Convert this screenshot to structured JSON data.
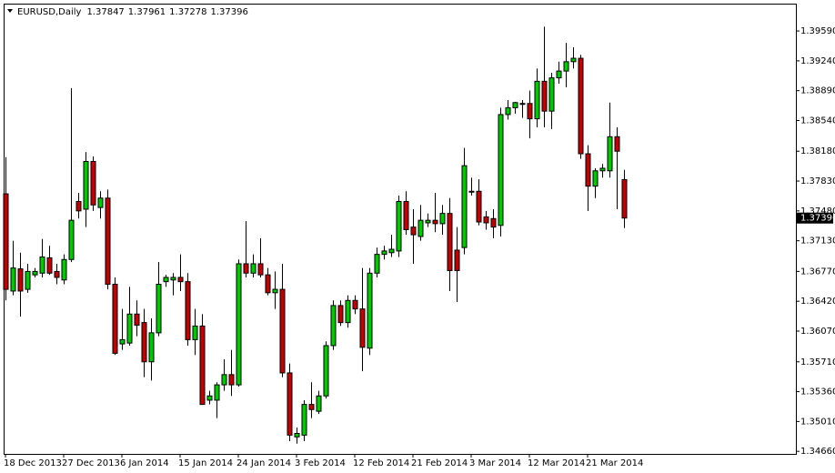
{
  "chart_data": {
    "type": "candlestick",
    "title": "EURUSD,Daily",
    "categories": [
      "18 Dec 2013",
      null,
      null,
      null,
      null,
      null,
      null,
      null,
      "27 Dec 2013",
      null,
      null,
      null,
      null,
      null,
      null,
      null,
      "6 Jan 2014",
      null,
      null,
      null,
      null,
      null,
      null,
      null,
      "15 Jan 2014",
      null,
      null,
      null,
      null,
      null,
      null,
      null,
      "24 Jan 2014",
      null,
      null,
      null,
      null,
      null,
      null,
      null,
      "3 Feb 2014",
      null,
      null,
      null,
      null,
      null,
      null,
      null,
      "12 Feb 2014",
      null,
      null,
      null,
      null,
      null,
      null,
      null,
      "21 Feb 2014",
      null,
      null,
      null,
      null,
      null,
      null,
      null,
      "3 Mar 2014",
      null,
      null,
      null,
      null,
      null,
      null,
      null,
      "12 Mar 2014",
      null,
      null,
      null,
      null,
      null,
      null,
      null,
      "21 Mar 2014",
      null,
      null,
      null,
      null,
      null
    ],
    "open": [
      1.3768,
      1.3654,
      1.368,
      1.3656,
      1.3673,
      1.3675,
      1.3693,
      1.3677,
      1.3667,
      1.3691,
      1.3759,
      1.375,
      1.3806,
      1.3752,
      1.3763,
      1.3662,
      1.3592,
      1.3593,
      1.3627,
      1.3617,
      1.3571,
      1.3605,
      1.3665,
      1.3667,
      1.367,
      1.3665,
      1.3597,
      1.3613,
      1.3526,
      1.3526,
      1.3544,
      1.3556,
      1.3544,
      1.3686,
      1.3675,
      1.3686,
      1.3673,
      1.3652,
      1.3656,
      1.3558,
      1.3483,
      1.3485,
      1.3521,
      1.3513,
      1.3531,
      1.359,
      1.3637,
      1.3617,
      1.3643,
      1.3633,
      1.3587,
      1.3675,
      1.3697,
      1.3699,
      1.3701,
      1.3759,
      1.3729,
      1.3718,
      1.3734,
      1.3737,
      1.3733,
      1.3745,
      1.3702,
      1.3705,
      1.377,
      1.3771,
      1.3741,
      1.3739,
      1.3731,
      1.3861,
      1.3869,
      1.3873,
      1.3874,
      1.3856,
      1.39,
      1.3865,
      1.3904,
      1.3912,
      1.3923,
      1.3927,
      1.3815,
      1.3777,
      1.3795,
      1.3795,
      1.3835,
      1.37847
    ],
    "high": [
      1.3811,
      1.3713,
      1.3699,
      1.3686,
      1.3681,
      1.3715,
      1.3707,
      1.3686,
      1.3697,
      1.3892,
      1.3769,
      1.3817,
      1.3812,
      1.3771,
      1.3773,
      1.367,
      1.3633,
      1.3659,
      1.3643,
      1.3633,
      1.3622,
      1.3688,
      1.3673,
      1.3675,
      1.3697,
      1.3675,
      1.3633,
      1.3627,
      1.3537,
      1.3547,
      1.3574,
      1.3585,
      1.3691,
      1.3736,
      1.3697,
      1.3716,
      1.3681,
      1.3677,
      1.3686,
      1.3569,
      1.3494,
      1.3526,
      1.3547,
      1.3537,
      1.3595,
      1.3643,
      1.3643,
      1.3649,
      1.3649,
      1.3681,
      1.3681,
      1.3705,
      1.3707,
      1.372,
      1.3766,
      1.3771,
      1.375,
      1.3755,
      1.3745,
      1.3769,
      1.3755,
      1.3763,
      1.3729,
      1.3822,
      1.3787,
      1.3785,
      1.3748,
      1.375,
      1.3869,
      1.3878,
      1.3876,
      1.3878,
      1.3889,
      1.3915,
      1.3964,
      1.391,
      1.3923,
      1.3945,
      1.394,
      1.3931,
      1.3825,
      1.3798,
      1.3803,
      1.3875,
      1.3846,
      1.37961
    ],
    "low": [
      1.3643,
      1.3649,
      1.3624,
      1.3652,
      1.367,
      1.367,
      1.3673,
      1.3662,
      1.3662,
      1.3688,
      1.3739,
      1.3729,
      1.3748,
      1.3739,
      1.3656,
      1.3579,
      1.3585,
      1.359,
      1.3601,
      1.3553,
      1.3549,
      1.3601,
      1.3659,
      1.3649,
      1.3654,
      1.359,
      1.3579,
      1.3521,
      1.3521,
      1.3505,
      1.3537,
      1.3531,
      1.3542,
      1.367,
      1.367,
      1.367,
      1.3649,
      1.3633,
      1.3553,
      1.3478,
      1.3475,
      1.3478,
      1.3505,
      1.351,
      1.3528,
      1.3585,
      1.3613,
      1.3611,
      1.3627,
      1.356,
      1.3579,
      1.367,
      1.3691,
      1.3694,
      1.3694,
      1.372,
      1.3686,
      1.3713,
      1.3729,
      1.3723,
      1.372,
      1.3654,
      1.3641,
      1.3697,
      1.3766,
      1.3731,
      1.3726,
      1.3716,
      1.3718,
      1.3855,
      1.3862,
      1.3857,
      1.3833,
      1.3846,
      1.3846,
      1.3844,
      1.3897,
      1.3893,
      1.3915,
      1.3809,
      1.3748,
      1.3763,
      1.3787,
      1.3787,
      1.375,
      1.37278
    ],
    "close": [
      1.3656,
      1.3681,
      1.3654,
      1.3677,
      1.3677,
      1.3694,
      1.3675,
      1.367,
      1.3691,
      1.3737,
      1.3748,
      1.3806,
      1.3755,
      1.3763,
      1.3662,
      1.3581,
      1.3597,
      1.3627,
      1.3614,
      1.3571,
      1.3605,
      1.3662,
      1.367,
      1.367,
      1.3665,
      1.3597,
      1.3613,
      1.3521,
      1.3531,
      1.3544,
      1.3556,
      1.3544,
      1.3686,
      1.3675,
      1.3686,
      1.3673,
      1.3652,
      1.3656,
      1.3558,
      1.3485,
      1.3487,
      1.3521,
      1.3515,
      1.3531,
      1.359,
      1.3637,
      1.3617,
      1.3643,
      1.3633,
      1.3588,
      1.3675,
      1.3697,
      1.3701,
      1.3703,
      1.3759,
      1.3726,
      1.372,
      1.3737,
      1.3737,
      1.3733,
      1.3745,
      1.3678,
      1.3678,
      1.3801,
      1.3771,
      1.3735,
      1.3734,
      1.3729,
      1.3861,
      1.3869,
      1.3875,
      1.3874,
      1.3856,
      1.39,
      1.3865,
      1.3904,
      1.3912,
      1.3923,
      1.3927,
      1.3815,
      1.3777,
      1.3795,
      1.3798,
      1.3835,
      1.3818,
      1.37396
    ],
    "up_color": "#00c800",
    "down_color": "#c00000",
    "ylim": [
      1.3463,
      1.399
    ],
    "yticks": [
      {
        "value": 1.3959,
        "label": "1.39590"
      },
      {
        "value": 1.3924,
        "label": "1.39240"
      },
      {
        "value": 1.3889,
        "label": "1.38890"
      },
      {
        "value": 1.3854,
        "label": "1.38540"
      },
      {
        "value": 1.3818,
        "label": "1.38180"
      },
      {
        "value": 1.3783,
        "label": "1.37830"
      },
      {
        "value": 1.3748,
        "label": "1.37480"
      },
      {
        "value": 1.3713,
        "label": "1.37130"
      },
      {
        "value": 1.3677,
        "label": "1.36770"
      },
      {
        "value": 1.3642,
        "label": "1.36420"
      },
      {
        "value": 1.3607,
        "label": "1.36070"
      },
      {
        "value": 1.3571,
        "label": "1.35710"
      },
      {
        "value": 1.3536,
        "label": "1.35360"
      },
      {
        "value": 1.3501,
        "label": "1.35010"
      },
      {
        "value": 1.3466,
        "label": "1.34660"
      }
    ],
    "grid": false
  }
}
